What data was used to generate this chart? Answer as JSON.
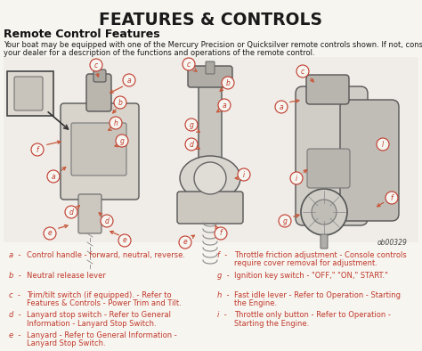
{
  "title": "FEATURES & CONTROLS",
  "subtitle": "Remote Control Features",
  "body_line1": "Your boat may be equipped with one of the Mercury Precision or Quicksilver remote controls shown. If not, consult",
  "body_line2": "your dealer for a description of the functions and operations of the remote control.",
  "figure_label": "ob00329",
  "bg_color": "#f7f5f0",
  "title_color": "#1a1a1a",
  "subtitle_color": "#111111",
  "body_color": "#1a1a1a",
  "red_color": "#c0392b",
  "arrow_color": "#c8573a",
  "legend_items_left": [
    [
      "a",
      "Control handle - forward, neutral, reverse."
    ],
    [
      "b",
      "Neutral release lever"
    ],
    [
      "c",
      "Trim/tilt switch (if equipped). - Refer to\nFeatures & Controls - Power Trim and Tilt."
    ],
    [
      "d",
      "Lanyard stop switch - Refer to General\nInformation - Lanyard Stop Switch."
    ],
    [
      "e",
      "Lanyard - Refer to General Information -\nLanyard Stop Switch."
    ]
  ],
  "legend_items_right": [
    [
      "f",
      "Throttle friction adjustment - Console controls\nrequire cover removal for adjustment."
    ],
    [
      "g",
      "Ignition key switch - \"OFF,\" \"ON,\" START.\""
    ],
    [
      "h",
      "Fast idle lever - Refer to Operation - Starting\nthe Engine."
    ],
    [
      "i",
      "Throttle only button - Refer to Operation -\nStarting the Engine."
    ]
  ]
}
